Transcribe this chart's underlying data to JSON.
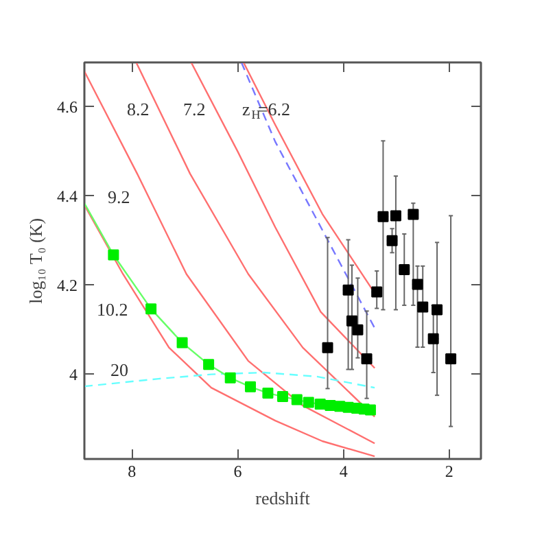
{
  "chart_data": {
    "type": "line",
    "xlabel": "redshift",
    "ylabel": "log₁₀ T₀ (K)",
    "xlim": [
      8.9,
      1.4
    ],
    "ylim": [
      3.81,
      4.7
    ],
    "xticks": [
      8,
      6,
      4,
      2
    ],
    "yticks": [
      4,
      4.2,
      4.4,
      4.6
    ],
    "grid": false,
    "series": [
      {
        "name": "z$_{H}$=6.2",
        "color": "#ff6f6f",
        "x": [
          5.89,
          5.29,
          4.4,
          3.43
        ],
        "values": [
          4.7,
          4.56,
          4.36,
          4.186
        ]
      },
      {
        "name": "7.2",
        "color": "#ff6f6f",
        "x": [
          6.88,
          6.0,
          5.29,
          4.43,
          3.41
        ],
        "values": [
          4.7,
          4.5,
          4.33,
          4.14,
          4.014
        ]
      },
      {
        "name": "8.2",
        "color": "#ff6f6f",
        "x": [
          7.92,
          6.9,
          5.8,
          4.77,
          3.41
        ],
        "values": [
          4.7,
          4.45,
          4.225,
          4.06,
          3.905
        ]
      },
      {
        "name": "9.2",
        "color": "#ff6f6f",
        "x": [
          8.9,
          7.9,
          6.97,
          5.8,
          4.77,
          3.41
        ],
        "values": [
          4.68,
          4.45,
          4.225,
          4.03,
          3.93,
          3.845
        ]
      },
      {
        "name": "10.2",
        "color": "#ff6f6f",
        "x": [
          8.9,
          8.17,
          7.3,
          6.5,
          5.29,
          4.4,
          3.41
        ],
        "values": [
          4.38,
          4.225,
          4.06,
          3.97,
          3.896,
          3.85,
          3.816
        ]
      },
      {
        "type": "line",
        "color": "#7777ff",
        "line_style": "dashed",
        "x": [
          5.93,
          5.29,
          4.0,
          3.41
        ],
        "values": [
          4.7,
          4.522,
          4.235,
          4.104
        ]
      },
      {
        "type": "line",
        "name": "20",
        "color": "#66ffff",
        "line_style": "dashed",
        "x": [
          8.9,
          7.5,
          6.5,
          5.5,
          4.5,
          3.41
        ],
        "values": [
          3.973,
          3.99,
          4.0,
          4.004,
          3.995,
          3.97
        ]
      },
      {
        "type": "line",
        "color": "#66ff66",
        "x": [
          8.9,
          8.35,
          7.64,
          7.05,
          6.55,
          6.14,
          5.76,
          5.43,
          5.15,
          4.88,
          4.66,
          4.44,
          4.25,
          4.07,
          3.91,
          3.75,
          3.61,
          3.49
        ],
        "values": [
          4.384,
          4.268,
          4.147,
          4.071,
          4.022,
          3.992,
          3.972,
          3.958,
          3.95,
          3.943,
          3.937,
          3.933,
          3.93,
          3.928,
          3.926,
          3.924,
          3.922,
          3.92
        ]
      },
      {
        "type": "scatter",
        "marker": "square",
        "color": "#00ee00",
        "x": [
          8.35,
          7.64,
          7.05,
          6.55,
          6.14,
          5.76,
          5.43,
          5.15,
          4.88,
          4.66,
          4.44,
          4.25,
          4.07,
          3.91,
          3.75,
          3.61,
          3.49
        ],
        "values": [
          4.268,
          4.147,
          4.071,
          4.022,
          3.992,
          3.972,
          3.958,
          3.95,
          3.943,
          3.937,
          3.933,
          3.93,
          3.928,
          3.926,
          3.924,
          3.922,
          3.92
        ]
      },
      {
        "type": "scatter",
        "marker": "square",
        "color": "#000000",
        "x": [
          4.3,
          3.91,
          3.84,
          3.73,
          3.56,
          3.37,
          3.25,
          3.08,
          3.01,
          2.85,
          2.68,
          2.6,
          2.5,
          2.3,
          2.23,
          1.97
        ],
        "values": [
          4.06,
          4.189,
          4.12,
          4.1,
          4.035,
          4.185,
          4.354,
          4.3,
          4.356,
          4.235,
          4.359,
          4.202,
          4.151,
          4.08,
          4.145,
          4.035
        ],
        "errors": [
          [
            3.968,
            4.307
          ],
          [
            4.011,
            4.302
          ],
          [
            4.011,
            4.245
          ],
          [
            4.037,
            4.216
          ],
          [
            3.946,
            4.142
          ],
          [
            4.148,
            4.232
          ],
          [
            4.145,
            4.524
          ],
          [
            4.273,
            4.327
          ],
          [
            4.145,
            4.445
          ],
          [
            4.155,
            4.315
          ],
          [
            4.155,
            4.384
          ],
          [
            4.061,
            4.243
          ],
          [
            4.061,
            4.243
          ],
          [
            4.004,
            4.155
          ],
          [
            3.953,
            4.296
          ],
          [
            3.883,
            4.356
          ]
        ],
        "xerrors": [
          0.08,
          0.1,
          0.1,
          0.1,
          0.1,
          0.1,
          0.1,
          0.1,
          0.1,
          0.1,
          0.1,
          0.1,
          0.1,
          0.1,
          0.1,
          0.1
        ]
      }
    ]
  }
}
